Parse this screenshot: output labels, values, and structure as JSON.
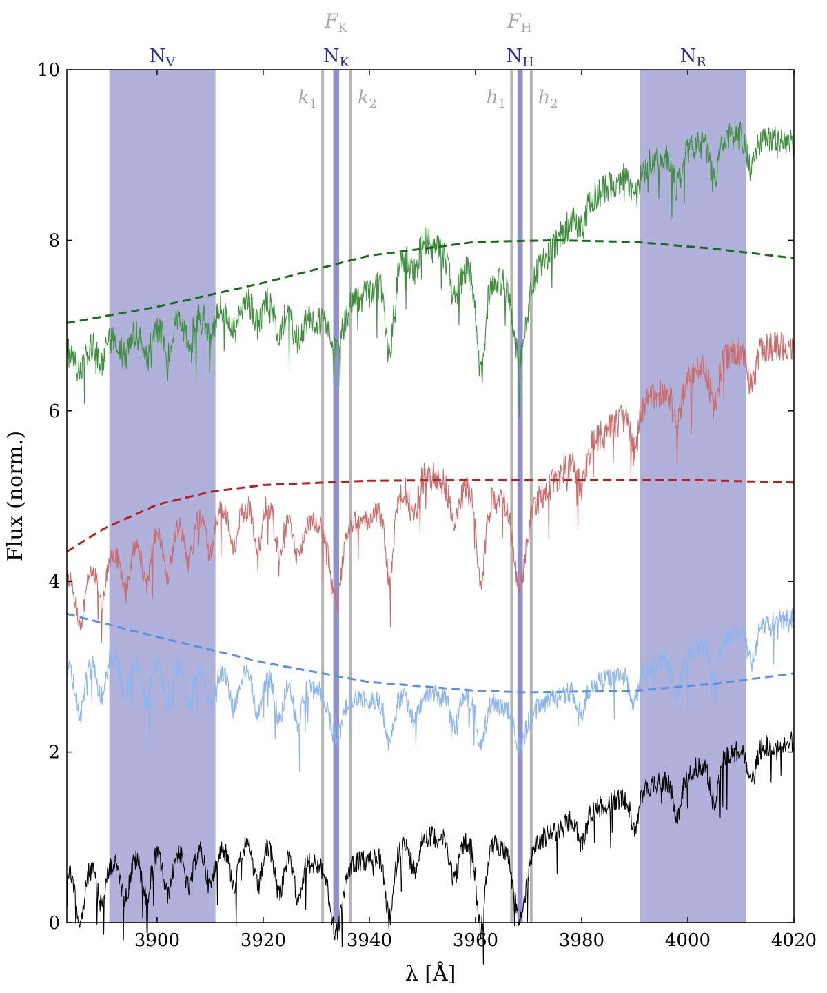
{
  "chart_data": {
    "type": "line",
    "xlabel": "λ [Å]",
    "ylabel": "Flux (norm.)",
    "xlim": [
      3883,
      4020
    ],
    "ylim": [
      0,
      10
    ],
    "xticks": [
      3900,
      3920,
      3940,
      3960,
      3980,
      4000,
      4020
    ],
    "yticks": [
      0,
      2,
      4,
      6,
      8,
      10
    ],
    "xtick_labels": [
      "3900",
      "3920",
      "3940",
      "3960",
      "3980",
      "4000",
      "4020"
    ],
    "ytick_labels": [
      "0",
      "2",
      "4",
      "6",
      "8",
      "10"
    ],
    "grid": false,
    "bands": [
      {
        "label": "N",
        "sub": "V",
        "range": [
          3891,
          3911
        ],
        "color": "#b0b1db"
      },
      {
        "label": "N",
        "sub": "K",
        "range": [
          3933.2,
          3934.3
        ],
        "color": "#8f92c9"
      },
      {
        "label": "N",
        "sub": "H",
        "range": [
          3967.9,
          3968.9
        ],
        "color": "#8f92c9"
      },
      {
        "label": "N",
        "sub": "R",
        "range": [
          3991,
          4011
        ],
        "color": "#b0b1db"
      }
    ],
    "filter_labels": [
      {
        "text": "F",
        "sub": "K",
        "x": 3933.7
      },
      {
        "text": "F",
        "sub": "H",
        "x": 3968.3
      }
    ],
    "vlines": [
      {
        "label": "k",
        "sub": "1",
        "x": 3931.2
      },
      {
        "label": "k",
        "sub": "2",
        "x": 3936.5
      },
      {
        "label": "h",
        "sub": "1",
        "x": 3966.8
      },
      {
        "label": "h",
        "sub": "2",
        "x": 3970.5
      }
    ],
    "series": [
      {
        "color": "#000000",
        "continuum": [
          [
            3883,
            0.75
          ],
          [
            3890,
            0.8
          ],
          [
            3900,
            0.95
          ],
          [
            3910,
            1.0
          ],
          [
            3920,
            1.05
          ],
          [
            3930,
            0.8
          ],
          [
            3940,
            0.85
          ],
          [
            3950,
            1.15
          ],
          [
            3960,
            1.05
          ],
          [
            3970,
            1.0
          ],
          [
            3980,
            1.4
          ],
          [
            3990,
            1.65
          ],
          [
            4000,
            1.9
          ],
          [
            4010,
            2.15
          ],
          [
            4020,
            2.25
          ]
        ],
        "dips": [
          [
            3885.5,
            0.65
          ],
          [
            3889.5,
            0.45
          ],
          [
            3894,
            0.45
          ],
          [
            3898,
            0.5
          ],
          [
            3902,
            0.5
          ],
          [
            3906,
            0.45
          ],
          [
            3910,
            0.45
          ],
          [
            3914.5,
            0.45
          ],
          [
            3919,
            0.5
          ],
          [
            3923,
            0.5
          ],
          [
            3926.5,
            0.45
          ],
          [
            3933.7,
            0.8
          ],
          [
            3943.8,
            0.8
          ],
          [
            3948.5,
            0.35
          ],
          [
            3956,
            0.45
          ],
          [
            3961,
            1.0
          ],
          [
            3968.3,
            0.85
          ],
          [
            3980,
            0.35
          ],
          [
            3990,
            0.4
          ],
          [
            3998,
            0.45
          ],
          [
            4005,
            0.5
          ],
          [
            4012,
            0.4
          ]
        ]
      },
      {
        "color": "#8cb4ee",
        "continuum": [
          [
            3883,
            3.1
          ],
          [
            3890,
            3.25
          ],
          [
            3900,
            3.2
          ],
          [
            3910,
            3.1
          ],
          [
            3920,
            3.05
          ],
          [
            3930,
            2.85
          ],
          [
            3940,
            2.7
          ],
          [
            3950,
            2.8
          ],
          [
            3960,
            2.75
          ],
          [
            3970,
            2.6
          ],
          [
            3980,
            2.9
          ],
          [
            3990,
            3.05
          ],
          [
            4000,
            3.3
          ],
          [
            4010,
            3.55
          ],
          [
            4020,
            3.7
          ]
        ],
        "dips": [
          [
            3885.5,
            0.6
          ],
          [
            3889.5,
            0.45
          ],
          [
            3894,
            0.45
          ],
          [
            3898,
            0.5
          ],
          [
            3902,
            0.5
          ],
          [
            3906,
            0.45
          ],
          [
            3910,
            0.45
          ],
          [
            3914.5,
            0.45
          ],
          [
            3919,
            0.5
          ],
          [
            3923,
            0.5
          ],
          [
            3926.5,
            0.45
          ],
          [
            3933.7,
            0.5
          ],
          [
            3943.8,
            0.5
          ],
          [
            3948.5,
            0.3
          ],
          [
            3956,
            0.35
          ],
          [
            3961,
            0.55
          ],
          [
            3968.3,
            0.4
          ],
          [
            3980,
            0.3
          ],
          [
            3990,
            0.35
          ],
          [
            3998,
            0.45
          ],
          [
            4005,
            0.45
          ],
          [
            4012,
            0.4
          ]
        ]
      },
      {
        "color": "#cd6a6a",
        "continuum": [
          [
            3883,
            4.15
          ],
          [
            3890,
            4.4
          ],
          [
            3900,
            4.7
          ],
          [
            3910,
            4.95
          ],
          [
            3920,
            5.1
          ],
          [
            3930,
            4.8
          ],
          [
            3940,
            4.85
          ],
          [
            3950,
            5.45
          ],
          [
            3960,
            5.2
          ],
          [
            3970,
            5.0
          ],
          [
            3980,
            5.7
          ],
          [
            3990,
            6.2
          ],
          [
            4000,
            6.6
          ],
          [
            4010,
            6.9
          ],
          [
            4020,
            6.95
          ]
        ],
        "dips": [
          [
            3885.5,
            0.65
          ],
          [
            3889.5,
            0.5
          ],
          [
            3894,
            0.5
          ],
          [
            3898,
            0.55
          ],
          [
            3902,
            0.55
          ],
          [
            3906,
            0.5
          ],
          [
            3910,
            0.5
          ],
          [
            3914.5,
            0.5
          ],
          [
            3919,
            0.55
          ],
          [
            3923,
            0.55
          ],
          [
            3926.5,
            0.5
          ],
          [
            3933.7,
            0.9
          ],
          [
            3943.8,
            0.9
          ],
          [
            3948.5,
            0.4
          ],
          [
            3956,
            0.5
          ],
          [
            3961,
            1.1
          ],
          [
            3968.3,
            0.95
          ],
          [
            3980,
            0.4
          ],
          [
            3990,
            0.45
          ],
          [
            3998,
            0.5
          ],
          [
            4005,
            0.55
          ],
          [
            4012,
            0.45
          ]
        ]
      },
      {
        "color": "#3f8f3f",
        "continuum": [
          [
            3883,
            6.85
          ],
          [
            3890,
            7.0
          ],
          [
            3900,
            7.15
          ],
          [
            3910,
            7.35
          ],
          [
            3920,
            7.5
          ],
          [
            3930,
            7.2
          ],
          [
            3940,
            7.55
          ],
          [
            3950,
            8.2
          ],
          [
            3960,
            7.75
          ],
          [
            3970,
            7.65
          ],
          [
            3980,
            8.6
          ],
          [
            3990,
            9.0
          ],
          [
            4000,
            9.25
          ],
          [
            4010,
            9.4
          ],
          [
            4020,
            9.3
          ]
        ],
        "dips": [
          [
            3885.5,
            0.3
          ],
          [
            3889.5,
            0.25
          ],
          [
            3894,
            0.25
          ],
          [
            3898,
            0.3
          ],
          [
            3902,
            0.3
          ],
          [
            3906,
            0.28
          ],
          [
            3910,
            0.28
          ],
          [
            3914.5,
            0.3
          ],
          [
            3919,
            0.3
          ],
          [
            3923,
            0.32
          ],
          [
            3926.5,
            0.3
          ],
          [
            3933.7,
            0.45
          ],
          [
            3943.8,
            0.95
          ],
          [
            3948.5,
            0.3
          ],
          [
            3956,
            0.45
          ],
          [
            3961,
            1.15
          ],
          [
            3968.3,
            0.85
          ],
          [
            3980,
            0.3
          ],
          [
            3990,
            0.35
          ],
          [
            3998,
            0.4
          ],
          [
            4005,
            0.45
          ],
          [
            4012,
            0.35
          ]
        ]
      }
    ],
    "fits": [
      {
        "color": "#5b8fe0",
        "points": [
          [
            3883,
            3.62
          ],
          [
            3900,
            3.35
          ],
          [
            3920,
            3.05
          ],
          [
            3940,
            2.82
          ],
          [
            3960,
            2.72
          ],
          [
            3970,
            2.7
          ],
          [
            3990,
            2.72
          ],
          [
            4005,
            2.8
          ],
          [
            4020,
            2.92
          ]
        ]
      },
      {
        "color": "#b22222",
        "points": [
          [
            3883,
            4.35
          ],
          [
            3890,
            4.62
          ],
          [
            3900,
            4.9
          ],
          [
            3910,
            5.05
          ],
          [
            3920,
            5.13
          ],
          [
            3940,
            5.18
          ],
          [
            3960,
            5.19
          ],
          [
            3980,
            5.19
          ],
          [
            4000,
            5.19
          ],
          [
            4020,
            5.16
          ]
        ]
      },
      {
        "color": "#1a6b1a",
        "points": [
          [
            3883,
            7.03
          ],
          [
            3900,
            7.22
          ],
          [
            3920,
            7.5
          ],
          [
            3940,
            7.82
          ],
          [
            3960,
            7.98
          ],
          [
            3975,
            8.0
          ],
          [
            3990,
            7.98
          ],
          [
            4005,
            7.9
          ],
          [
            4020,
            7.79
          ]
        ]
      }
    ]
  }
}
